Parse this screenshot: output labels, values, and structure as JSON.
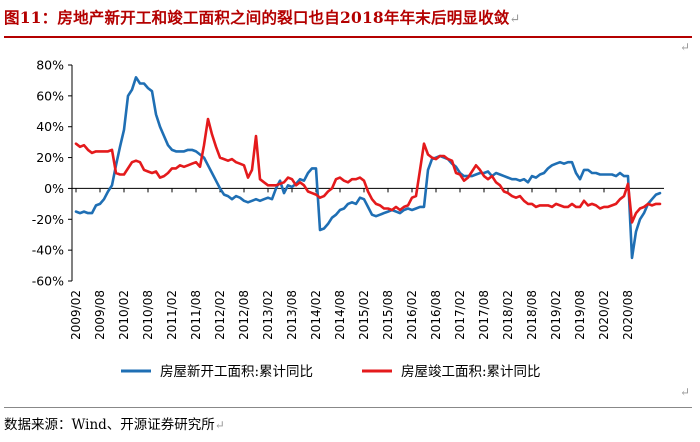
{
  "title": "图11：房地产新开工和竣工面积之间的裂口也自2018年年末后明显收敛",
  "title_mark": "↵",
  "source": "数据来源：Wind、开源证券研究所",
  "source_mark": "↵",
  "corner_mark": "↵",
  "chart_data": {
    "type": "line",
    "ylim": [
      -60,
      80
    ],
    "ytick_values": [
      -60,
      -40,
      -20,
      0,
      20,
      40,
      60,
      80
    ],
    "ytick_labels": [
      "-60%",
      "-40%",
      "-20%",
      "0%",
      "20%",
      "40%",
      "60%",
      "80%"
    ],
    "x_start": "2009/02",
    "x_end": "2020/08",
    "xtick_labels": [
      "2009/02",
      "2009/08",
      "2010/02",
      "2010/08",
      "2011/02",
      "2011/08",
      "2012/02",
      "2012/08",
      "2013/02",
      "2013/08",
      "2014/02",
      "2014/08",
      "2015/02",
      "2015/08",
      "2016/02",
      "2016/08",
      "2017/02",
      "2017/08",
      "2018/02",
      "2018/08",
      "2019/02",
      "2019/08",
      "2020/02",
      "2020/08"
    ],
    "legend_position": "bottom",
    "series": [
      {
        "name": "房屋新开工面积:累计同比",
        "color": "#1f6fb4",
        "values": [
          -15,
          -16,
          -15,
          -16,
          -16,
          -11,
          -10,
          -7,
          -2,
          2,
          15,
          27,
          38,
          60,
          64,
          72,
          68,
          68,
          65,
          63,
          48,
          40,
          34,
          28,
          25,
          24,
          24,
          24,
          25,
          25,
          24,
          22,
          20,
          15,
          10,
          5,
          0,
          -4,
          -5,
          -7,
          -5,
          -6,
          -8,
          -9,
          -8,
          -7,
          -8,
          -7,
          -6,
          -7,
          0,
          5,
          -3,
          2,
          1,
          3,
          6,
          5,
          10,
          13,
          13,
          -27,
          -26,
          -23,
          -19,
          -17,
          -14,
          -13,
          -10,
          -9,
          -10,
          -6,
          -7,
          -12,
          -17,
          -18,
          -17,
          -16,
          -15,
          -14,
          -15,
          -16,
          -14,
          -13,
          -14,
          -13,
          -12,
          -12,
          12,
          19,
          20,
          21,
          20,
          19,
          16,
          14,
          10,
          8,
          8,
          8,
          9,
          10,
          10,
          11,
          8,
          10,
          9,
          8,
          7,
          6,
          6,
          5,
          6,
          4,
          8,
          7,
          9,
          10,
          13,
          15,
          16,
          17,
          16,
          17,
          17,
          10,
          6,
          12,
          12,
          10,
          10,
          9,
          9,
          9,
          9,
          8,
          10,
          8,
          8,
          -45,
          -28,
          -20,
          -16,
          -10,
          -7,
          -4,
          -3
        ],
        "color_name": "blue"
      },
      {
        "name": "房屋竣工面积:累计同比",
        "color": "#e41a1c",
        "values": [
          29,
          27,
          28,
          25,
          23,
          24,
          24,
          24,
          24,
          25,
          10,
          9,
          9,
          13,
          17,
          18,
          17,
          12,
          11,
          10,
          11,
          7,
          8,
          10,
          13,
          13,
          15,
          14,
          15,
          16,
          17,
          14,
          28,
          45,
          35,
          27,
          20,
          19,
          18,
          19,
          17,
          16,
          15,
          7,
          12,
          34,
          6,
          4,
          2,
          2,
          2,
          3,
          4,
          7,
          6,
          2,
          4,
          2,
          -2,
          -3,
          -4,
          -6,
          -5,
          -2,
          0,
          6,
          7,
          5,
          4,
          6,
          6,
          7,
          5,
          -2,
          -7,
          -10,
          -11,
          -13,
          -13,
          -14,
          -12,
          -14,
          -12,
          -11,
          -6,
          -5,
          12,
          29,
          22,
          20,
          19,
          21,
          21,
          19,
          18,
          10,
          9,
          5,
          7,
          11,
          15,
          12,
          8,
          6,
          8,
          4,
          2,
          -2,
          -3,
          -5,
          -6,
          -5,
          -8,
          -10,
          -10,
          -12,
          -11,
          -11,
          -11,
          -12,
          -10,
          -11,
          -12,
          -12,
          -10,
          -12,
          -12,
          -8,
          -11,
          -10,
          -11,
          -13,
          -12,
          -12,
          -11,
          -10,
          -7,
          -5,
          3,
          -22,
          -16,
          -13,
          -12,
          -10,
          -11,
          -10,
          -10
        ],
        "color_name": "red"
      }
    ]
  }
}
